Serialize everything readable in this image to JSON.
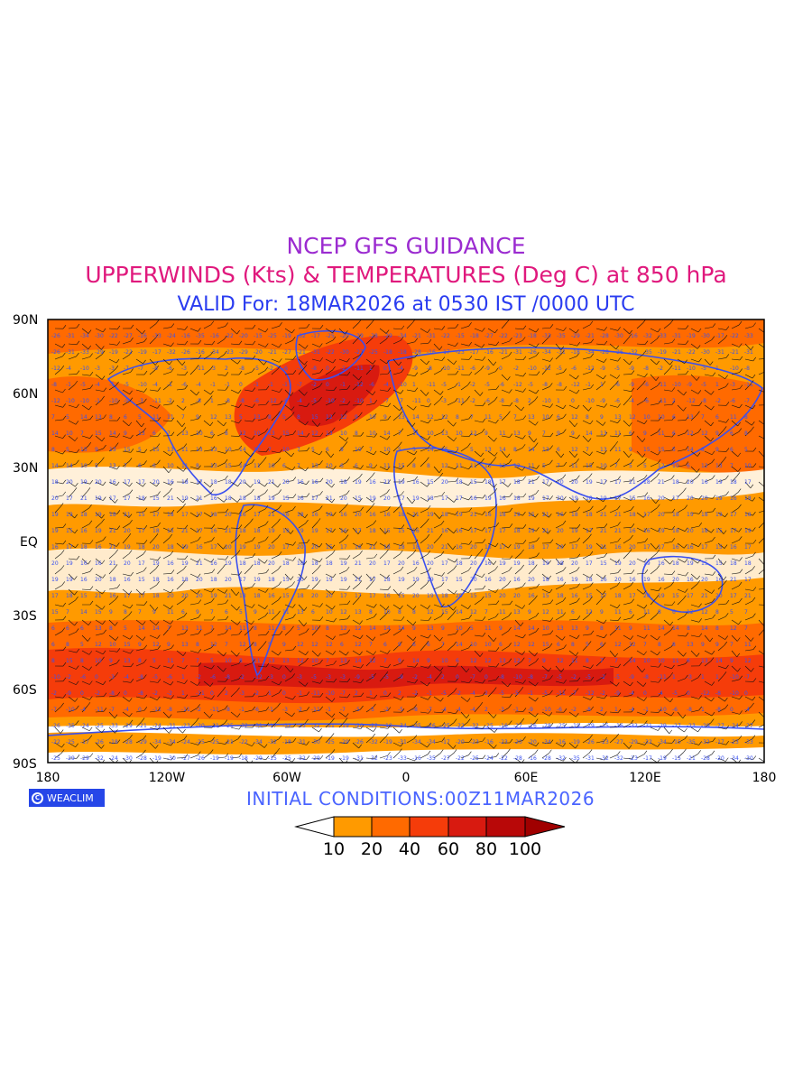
{
  "header": {
    "line1": "NCEP GFS GUIDANCE",
    "line2": "UPPERWINDS (Kts) & TEMPERATURES (Deg C) at 850 hPa",
    "line3": "VALID For: 18MAR2026 at 0530 IST /0000 UTC"
  },
  "map": {
    "lat_labels": [
      "90N",
      "60N",
      "30N",
      "EQ",
      "30S",
      "60S",
      "90S"
    ],
    "lon_labels": [
      "180",
      "120W",
      "60W",
      "0",
      "60E",
      "120E",
      "180"
    ],
    "colors": {
      "land_outline": "#3a4ff0",
      "barb": "#111111",
      "temperature_text": "#3b52f0"
    }
  },
  "footer": {
    "logo_text": "WEACLIM",
    "initial_conditions": "INITIAL  CONDITIONS:00Z11MAR2026"
  },
  "legend": {
    "labels": [
      "10",
      "20",
      "40",
      "60",
      "80",
      "100"
    ],
    "colors": [
      "#ffffff",
      "#ff9a00",
      "#ff6a00",
      "#f53c0a",
      "#d81a10",
      "#b80808",
      "#a00000"
    ]
  }
}
